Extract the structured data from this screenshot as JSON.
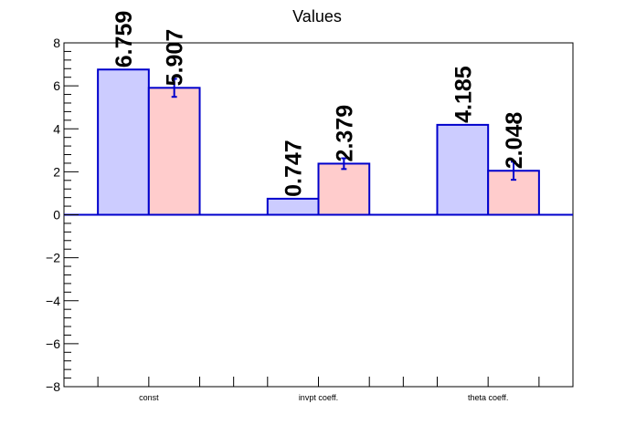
{
  "chart_data": {
    "type": "bar",
    "title": "Values",
    "xlabel": "",
    "ylabel": "",
    "categories": [
      "const",
      "invpt coeff.",
      "theta coeff."
    ],
    "ylim": [
      -8,
      8
    ],
    "yticks": [
      -8,
      -6,
      -4,
      -2,
      0,
      2,
      4,
      6,
      8
    ],
    "ytick_labels": [
      "−8",
      "−6",
      "−4",
      "−2",
      "0",
      "2",
      "4",
      "6",
      "8"
    ],
    "grid": false,
    "legend": "none",
    "series": [
      {
        "values": [
          6.759,
          0.747,
          4.185
        ],
        "labels": [
          "6.759",
          "0.747",
          "4.185"
        ],
        "fill": "#ccccff",
        "stroke": "#0000cc"
      },
      {
        "values": [
          5.907,
          2.379,
          2.048
        ],
        "labels": [
          "5.907",
          "2.379",
          "2.048"
        ],
        "errors": [
          0.42,
          0.25,
          0.42
        ],
        "fill": "#ffcccc",
        "stroke": "#0000cc"
      }
    ]
  }
}
